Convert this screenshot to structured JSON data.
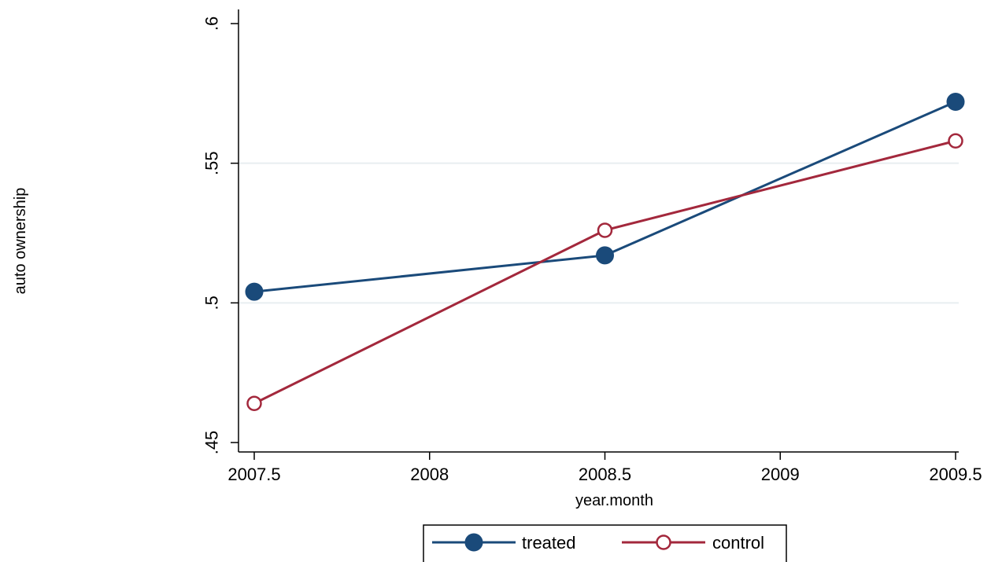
{
  "chart_data": {
    "type": "line",
    "xlabel": "year.month",
    "ylabel": "auto ownership",
    "x": [
      2007.5,
      2008.5,
      2009.5
    ],
    "xlim": [
      2007.5,
      2009.5
    ],
    "ylim": [
      0.45,
      0.6
    ],
    "x_ticks": [
      {
        "value": 2007.5,
        "label": "2007.5"
      },
      {
        "value": 2008,
        "label": "2008"
      },
      {
        "value": 2008.5,
        "label": "2008.5"
      },
      {
        "value": 2009,
        "label": "2009"
      },
      {
        "value": 2009.5,
        "label": "2009.5"
      }
    ],
    "y_ticks": [
      {
        "value": 0.45,
        "label": ".45"
      },
      {
        "value": 0.5,
        "label": ".5"
      },
      {
        "value": 0.55,
        "label": ".55"
      },
      {
        "value": 0.6,
        "label": ".6"
      }
    ],
    "grid": true,
    "legend_position": "bottom",
    "series": [
      {
        "name": "treated",
        "values": [
          0.504,
          0.517,
          0.572
        ],
        "color": "#1a4a7a",
        "marker": "filled-circle"
      },
      {
        "name": "control",
        "values": [
          0.464,
          0.526,
          0.558
        ],
        "color": "#a3283c",
        "marker": "hollow-circle"
      }
    ]
  }
}
